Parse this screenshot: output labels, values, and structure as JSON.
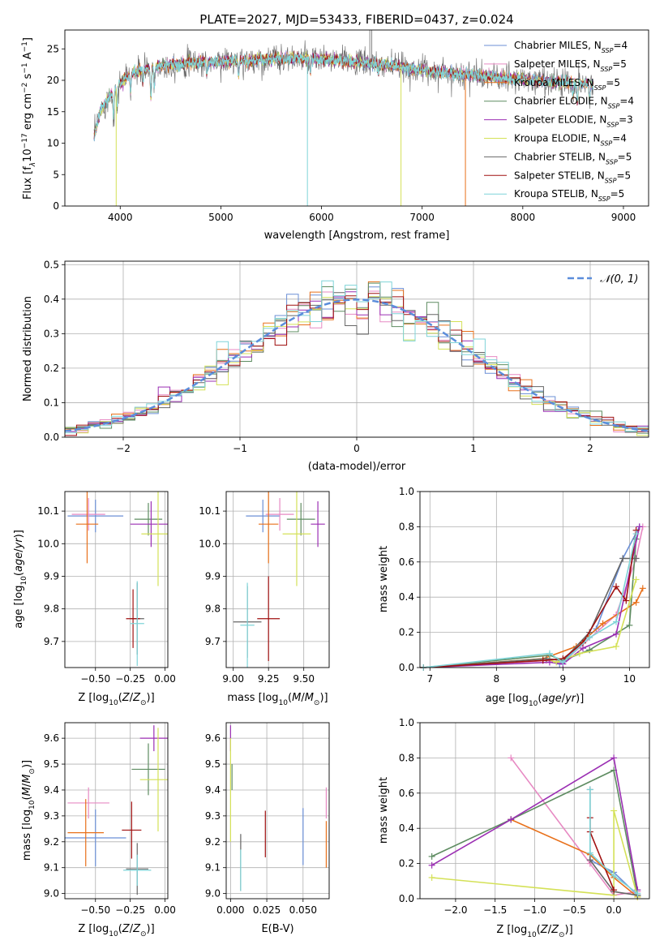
{
  "figure_title": "PLATE=2027, MJD=53433, FIBERID=0437, z=0.024",
  "models": [
    {
      "name": "Chabrier MILES",
      "nssp": "4",
      "color": "#6b8fd6"
    },
    {
      "name": "Salpeter MILES",
      "nssp": "5",
      "color": "#e78ac3"
    },
    {
      "name": "Kroupa MILES",
      "nssp": "5",
      "color": "#e8701a"
    },
    {
      "name": "Chabrier ELODIE",
      "nssp": "4",
      "color": "#5e8c61"
    },
    {
      "name": "Salpeter ELODIE",
      "nssp": "3",
      "color": "#9b2fb3"
    },
    {
      "name": "Kroupa ELODIE",
      "nssp": "4",
      "color": "#d4e157"
    },
    {
      "name": "Chabrier STELIB",
      "nssp": "5",
      "color": "#666666"
    },
    {
      "name": "Salpeter STELIB",
      "nssp": "5",
      "color": "#a01010"
    },
    {
      "name": "Kroupa STELIB",
      "nssp": "5",
      "color": "#7fd4d8"
    }
  ],
  "nssp_label": "N",
  "nssp_sub": "SSP",
  "chart_data": [
    {
      "id": "spectrum",
      "type": "line",
      "xlabel": "wavelength [Angstrom, rest frame]",
      "ylabel": "Flux [f",
      "ylabel_parts": [
        "Flux [f",
        "λ",
        "10",
        "−17",
        " erg cm",
        "−2",
        " s",
        "−1",
        " A",
        "−1",
        "]"
      ],
      "xlim": [
        3450,
        9250
      ],
      "ylim": [
        0,
        28
      ],
      "xticks": [
        4000,
        5000,
        6000,
        7000,
        8000,
        9000
      ],
      "yticks": [
        0,
        5,
        10,
        15,
        20,
        25
      ],
      "continuum": [
        [
          3740,
          11
        ],
        [
          3800,
          15
        ],
        [
          3900,
          17.5
        ],
        [
          4000,
          19.5
        ],
        [
          4100,
          21
        ],
        [
          4300,
          22
        ],
        [
          4500,
          22.5
        ],
        [
          4700,
          22.8
        ],
        [
          5000,
          23
        ],
        [
          5300,
          23.2
        ],
        [
          5600,
          23.5
        ],
        [
          6000,
          23.3
        ],
        [
          6300,
          23
        ],
        [
          6600,
          22.5
        ],
        [
          6900,
          21.8
        ],
        [
          7200,
          21.3
        ],
        [
          7500,
          20.8
        ],
        [
          7800,
          20.3
        ],
        [
          8100,
          20
        ],
        [
          8400,
          19.7
        ],
        [
          8700,
          19.4
        ]
      ],
      "absorption": [
        [
          3935,
          4
        ],
        [
          3970,
          3
        ],
        [
          4102,
          3
        ],
        [
          4227,
          1.5
        ],
        [
          4305,
          5
        ],
        [
          4340,
          3
        ],
        [
          4861,
          2
        ],
        [
          5175,
          2.5
        ],
        [
          5270,
          1
        ],
        [
          5890,
          2
        ],
        [
          6563,
          1.5
        ],
        [
          8498,
          2
        ],
        [
          8542,
          3
        ],
        [
          8662,
          2.5
        ]
      ],
      "glitches": [
        [
          5860,
          0
        ],
        [
          6790,
          0
        ],
        [
          3960,
          0
        ],
        [
          7430,
          0
        ]
      ],
      "x_start": 3740,
      "x_end": 8700
    },
    {
      "id": "residual-histogram",
      "type": "step",
      "xlabel": "(data-model)/error",
      "ylabel": "Normed distribution",
      "xlim": [
        -2.5,
        2.5
      ],
      "ylim": [
        0,
        0.51
      ],
      "xticks": [
        -2,
        -1,
        0,
        1,
        2
      ],
      "yticks": [
        0,
        0.1,
        0.2,
        0.3,
        0.4,
        0.5
      ],
      "legend": "𝒩(0, 1)",
      "bin_width": 0.1,
      "reference_curve": "normal(0,1)"
    },
    {
      "id": "age-vs-Z",
      "type": "errorbar",
      "xlabel": "Z [log10(Z/Z⊙)]",
      "ylabel": "age  [log10(age/yr)]",
      "xlim": [
        -0.72,
        0.02
      ],
      "ylim": [
        9.62,
        10.16
      ],
      "xticks": [
        -0.5,
        -0.25,
        0.0
      ],
      "yticks": [
        9.7,
        9.8,
        9.9,
        10.0,
        10.1
      ],
      "points": [
        {
          "x": -0.5,
          "y": 10.085,
          "xerr": 0.2,
          "yerr": 0.05,
          "color": "#6b8fd6"
        },
        {
          "x": -0.55,
          "y": 10.09,
          "xerr": 0.12,
          "yerr": 0.05,
          "color": "#e78ac3"
        },
        {
          "x": -0.56,
          "y": 10.06,
          "xerr": 0.08,
          "yerr": 0.12,
          "color": "#e8701a"
        },
        {
          "x": -0.12,
          "y": 10.075,
          "xerr": 0.1,
          "yerr": 0.05,
          "color": "#5e8c61"
        },
        {
          "x": -0.1,
          "y": 10.06,
          "xerr": 0.15,
          "yerr": 0.07,
          "color": "#9b2fb3"
        },
        {
          "x": -0.05,
          "y": 10.03,
          "xerr": 0.12,
          "yerr": 0.16,
          "color": "#d4e157"
        },
        {
          "x": -0.2,
          "y": 9.77,
          "xerr": 0.05,
          "yerr": 0.11,
          "color": "#666666"
        },
        {
          "x": -0.23,
          "y": 9.77,
          "xerr": 0.05,
          "yerr": 0.09,
          "color": "#a01010"
        },
        {
          "x": -0.2,
          "y": 9.755,
          "xerr": 0.05,
          "yerr": 0.13,
          "color": "#7fd4d8"
        }
      ]
    },
    {
      "id": "age-vs-mass",
      "type": "errorbar",
      "xlabel": "mass [log10(M/M⊙)]",
      "ylabel": "",
      "xlim": [
        8.95,
        9.68
      ],
      "ylim": [
        9.62,
        10.16
      ],
      "xticks": [
        9.0,
        9.25,
        9.5
      ],
      "yticks": [
        9.7,
        9.8,
        9.9,
        10.0,
        10.1
      ],
      "points": [
        {
          "x": 9.21,
          "y": 10.085,
          "xerr": 0.12,
          "yerr": 0.05,
          "color": "#6b8fd6"
        },
        {
          "x": 9.33,
          "y": 10.09,
          "xerr": 0.1,
          "yerr": 0.05,
          "color": "#e78ac3"
        },
        {
          "x": 9.25,
          "y": 10.06,
          "xerr": 0.07,
          "yerr": 0.12,
          "color": "#e8701a"
        },
        {
          "x": 9.48,
          "y": 10.075,
          "xerr": 0.1,
          "yerr": 0.05,
          "color": "#5e8c61"
        },
        {
          "x": 9.6,
          "y": 10.06,
          "xerr": 0.05,
          "yerr": 0.07,
          "color": "#9b2fb3"
        },
        {
          "x": 9.45,
          "y": 10.03,
          "xerr": 0.1,
          "yerr": 0.16,
          "color": "#d4e157"
        },
        {
          "x": 9.1,
          "y": 9.76,
          "xerr": 0.1,
          "yerr": 0.11,
          "color": "#666666"
        },
        {
          "x": 9.25,
          "y": 9.77,
          "xerr": 0.08,
          "yerr": 0.13,
          "color": "#a01010"
        },
        {
          "x": 9.1,
          "y": 9.75,
          "xerr": 0.05,
          "yerr": 0.13,
          "color": "#7fd4d8"
        }
      ]
    },
    {
      "id": "weight-vs-age",
      "type": "line",
      "xlabel": "age  [log10(age/yr)]",
      "ylabel": "mass weight",
      "xlim": [
        6.85,
        10.3
      ],
      "ylim": [
        0,
        1.0
      ],
      "xticks": [
        7,
        8,
        9,
        10
      ],
      "yticks": [
        0.0,
        0.2,
        0.4,
        0.6,
        0.8,
        1.0
      ],
      "series": [
        {
          "color": "#6b8fd6",
          "x": [
            6.9,
            8.75,
            8.95,
            9.5,
            9.9,
            10.15
          ],
          "y": [
            0.0,
            0.05,
            0.02,
            0.22,
            0.62,
            0.8
          ]
        },
        {
          "color": "#e78ac3",
          "x": [
            6.9,
            8.75,
            9.0,
            9.8,
            10.1,
            10.2
          ],
          "y": [
            0.0,
            0.04,
            0.03,
            0.3,
            0.62,
            0.8
          ]
        },
        {
          "color": "#e8701a",
          "x": [
            6.9,
            8.7,
            9.2,
            9.6,
            10.1,
            10.2
          ],
          "y": [
            0.0,
            0.05,
            0.12,
            0.25,
            0.37,
            0.45
          ]
        },
        {
          "color": "#5e8c61",
          "x": [
            6.9,
            8.8,
            9.0,
            9.4,
            10.0,
            10.1
          ],
          "y": [
            0.0,
            0.07,
            0.04,
            0.1,
            0.24,
            0.73
          ]
        },
        {
          "color": "#9b2fb3",
          "x": [
            6.9,
            8.8,
            9.0,
            9.3,
            9.8,
            10.15
          ],
          "y": [
            0.0,
            0.03,
            0.02,
            0.11,
            0.19,
            0.8
          ]
        },
        {
          "color": "#d4e157",
          "x": [
            6.9,
            8.75,
            8.9,
            9.25,
            9.8,
            10.1
          ],
          "y": [
            0.0,
            0.05,
            0.03,
            0.08,
            0.12,
            0.5
          ]
        },
        {
          "color": "#666666",
          "x": [
            6.9,
            8.75,
            9.0,
            9.4,
            9.9,
            10.1
          ],
          "y": [
            0.0,
            0.05,
            0.04,
            0.2,
            0.62,
            0.62
          ]
        },
        {
          "color": "#a01010",
          "x": [
            6.9,
            8.7,
            9.0,
            9.3,
            9.8,
            9.95,
            10.1
          ],
          "y": [
            0.0,
            0.04,
            0.05,
            0.14,
            0.46,
            0.38,
            0.78
          ]
        },
        {
          "color": "#7fd4d8",
          "x": [
            6.9,
            8.8,
            9.0,
            9.4,
            9.8,
            10.1
          ],
          "y": [
            0.0,
            0.08,
            0.03,
            0.17,
            0.26,
            0.76
          ]
        }
      ]
    },
    {
      "id": "mass-vs-Z",
      "type": "errorbar",
      "xlabel": "Z [log10(Z/Z⊙)]",
      "ylabel": "mass [log10(M/M⊙)]",
      "xlim": [
        -0.72,
        0.02
      ],
      "ylim": [
        8.98,
        9.66
      ],
      "xticks": [
        -0.5,
        -0.25,
        0.0
      ],
      "yticks": [
        9.0,
        9.1,
        9.2,
        9.3,
        9.4,
        9.5,
        9.6
      ],
      "points": [
        {
          "x": -0.5,
          "y": 9.215,
          "xerr": 0.22,
          "yerr": 0.11,
          "color": "#6b8fd6"
        },
        {
          "x": -0.55,
          "y": 9.35,
          "xerr": 0.15,
          "yerr": 0.06,
          "color": "#e78ac3"
        },
        {
          "x": -0.57,
          "y": 9.235,
          "xerr": 0.13,
          "yerr": 0.13,
          "color": "#e8701a"
        },
        {
          "x": -0.12,
          "y": 9.48,
          "xerr": 0.12,
          "yerr": 0.1,
          "color": "#5e8c61"
        },
        {
          "x": -0.08,
          "y": 9.6,
          "xerr": 0.1,
          "yerr": 0.05,
          "color": "#9b2fb3"
        },
        {
          "x": -0.05,
          "y": 9.44,
          "xerr": 0.13,
          "yerr": 0.2,
          "color": "#d4e157"
        },
        {
          "x": -0.2,
          "y": 9.095,
          "xerr": 0.08,
          "yerr": 0.1,
          "color": "#666666"
        },
        {
          "x": -0.24,
          "y": 9.245,
          "xerr": 0.07,
          "yerr": 0.11,
          "color": "#a01010"
        },
        {
          "x": -0.2,
          "y": 9.09,
          "xerr": 0.1,
          "yerr": 0.06,
          "color": "#7fd4d8"
        }
      ]
    },
    {
      "id": "mass-vs-EBV",
      "type": "errorbar",
      "xlabel": "E(B-V)",
      "ylabel": "",
      "xlim": [
        -0.003,
        0.068
      ],
      "ylim": [
        8.98,
        9.66
      ],
      "xticks": [
        0.0,
        0.025,
        0.05
      ],
      "xtick_labels": [
        "0.000",
        "0.025",
        "0.050"
      ],
      "yticks": [
        9.0,
        9.1,
        9.2,
        9.3,
        9.4,
        9.5,
        9.6
      ],
      "points": [
        {
          "x": 0.05,
          "y": 9.22,
          "xerr": 0,
          "yerr": 0.11,
          "color": "#6b8fd6"
        },
        {
          "x": 0.066,
          "y": 9.35,
          "xerr": 0,
          "yerr": 0.06,
          "color": "#e78ac3"
        },
        {
          "x": 0.066,
          "y": 9.19,
          "xerr": 0,
          "yerr": 0.09,
          "color": "#e8701a"
        },
        {
          "x": 0.001,
          "y": 9.45,
          "xerr": 0,
          "yerr": 0.05,
          "color": "#5e8c61"
        },
        {
          "x": 0.0,
          "y": 9.6,
          "xerr": 0,
          "yerr": 0.05,
          "color": "#9b2fb3"
        },
        {
          "x": 0.0,
          "y": 9.4,
          "xerr": 0,
          "yerr": 0.2,
          "color": "#d4e157"
        },
        {
          "x": 0.007,
          "y": 9.12,
          "xerr": 0,
          "yerr": 0.11,
          "color": "#666666"
        },
        {
          "x": 0.024,
          "y": 9.23,
          "xerr": 0,
          "yerr": 0.09,
          "color": "#a01010"
        },
        {
          "x": 0.007,
          "y": 9.09,
          "xerr": 0,
          "yerr": 0.08,
          "color": "#7fd4d8"
        }
      ]
    },
    {
      "id": "weight-vs-Z",
      "type": "line",
      "xlabel": "Z [log10(Z/Z⊙)]",
      "ylabel": "mass weight",
      "xlim": [
        -2.45,
        0.45
      ],
      "ylim": [
        0,
        1.0
      ],
      "xticks": [
        -2.0,
        -1.5,
        -1.0,
        -0.5,
        0.0
      ],
      "yticks": [
        0.0,
        0.2,
        0.4,
        0.6,
        0.8,
        1.0
      ],
      "series": [
        {
          "color": "#6b8fd6",
          "x": [
            -0.3,
            0.0,
            0.3
          ],
          "y": [
            0.22,
            0.15,
            0.02
          ]
        },
        {
          "color": "#e78ac3",
          "x": [
            -1.3,
            -0.3,
            0.0,
            0.3
          ],
          "y": [
            0.8,
            0.2,
            0.02,
            0.04
          ]
        },
        {
          "color": "#e8701a",
          "x": [
            -1.3,
            -0.3,
            0.0,
            0.3
          ],
          "y": [
            0.45,
            0.25,
            0.12,
            0.01
          ]
        },
        {
          "color": "#5e8c61",
          "x": [
            -2.3,
            -1.3,
            0.0,
            0.3
          ],
          "y": [
            0.24,
            0.45,
            0.73,
            0.02
          ]
        },
        {
          "color": "#9b2fb3",
          "x": [
            -2.3,
            -1.3,
            0.0,
            0.3
          ],
          "y": [
            0.19,
            0.45,
            0.8,
            0.05
          ]
        },
        {
          "color": "#d4e157",
          "x": [
            -2.3,
            0.0,
            0.0,
            0.3
          ],
          "y": [
            0.12,
            0.02,
            0.5,
            0.01
          ]
        },
        {
          "color": "#666666",
          "x": [
            -0.3,
            -0.3,
            0.0,
            0.3
          ],
          "y": [
            0.62,
            0.22,
            0.04,
            0.02
          ]
        },
        {
          "color": "#a01010",
          "x": [
            -0.3,
            -0.3,
            0.0
          ],
          "y": [
            0.46,
            0.38,
            0.05
          ]
        },
        {
          "color": "#7fd4d8",
          "x": [
            -0.3,
            -0.3,
            0.0,
            0.3
          ],
          "y": [
            0.62,
            0.26,
            0.13,
            0.03
          ]
        }
      ]
    }
  ]
}
